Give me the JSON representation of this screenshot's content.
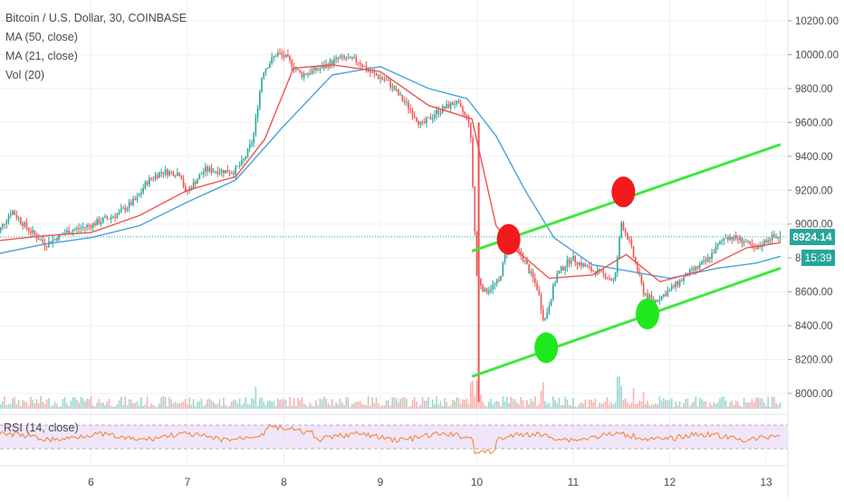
{
  "legend": {
    "title": "Bitcoin / U.S. Dollar, 30, COINBASE",
    "ma50": "MA (50, close)",
    "ma21": "MA (21, close)",
    "vol": "Vol (20)",
    "rsi": "RSI (14, close)"
  },
  "badges": {
    "last_price": "8924.14",
    "countdown": "15:39"
  },
  "colors": {
    "up": "#26a69a",
    "down": "#ef5350",
    "ma50": "#4aa3d8",
    "ma21": "#ef5350",
    "channel": "#3ee83e",
    "marker_red": "#f21a1a",
    "marker_green": "#1ee81e",
    "rsi_line": "#f57f2f",
    "rsi_band": "#eadcf6"
  },
  "chart_data": {
    "type": "candlestick",
    "x_ticks": [
      "6",
      "7",
      "8",
      "9",
      "10",
      "11",
      "12",
      "13"
    ],
    "y_ticks": [
      "8000.00",
      "8200.00",
      "8400.00",
      "8600.00",
      "8800.00",
      "9000.00",
      "9200.00",
      "9400.00",
      "9600.00",
      "9800.00",
      "10000.00",
      "10200.00"
    ],
    "ylim": [
      7900,
      10250
    ],
    "last_price": 8924.14,
    "price_path": [
      [
        5.0,
        8900
      ],
      [
        5.2,
        9080
      ],
      [
        5.35,
        8980
      ],
      [
        5.55,
        8880
      ],
      [
        5.75,
        8950
      ],
      [
        6.0,
        8990
      ],
      [
        6.3,
        9060
      ],
      [
        6.5,
        9150
      ],
      [
        6.6,
        9250
      ],
      [
        6.75,
        9310
      ],
      [
        6.95,
        9300
      ],
      [
        7.0,
        9180
      ],
      [
        7.2,
        9320
      ],
      [
        7.5,
        9310
      ],
      [
        7.6,
        9370
      ],
      [
        7.7,
        9500
      ],
      [
        7.8,
        9900
      ],
      [
        7.95,
        10010
      ],
      [
        8.05,
        9980
      ],
      [
        8.2,
        9880
      ],
      [
        8.4,
        9920
      ],
      [
        8.6,
        9980
      ],
      [
        8.8,
        9960
      ],
      [
        8.9,
        9900
      ],
      [
        9.1,
        9840
      ],
      [
        9.3,
        9700
      ],
      [
        9.45,
        9580
      ],
      [
        9.6,
        9660
      ],
      [
        9.8,
        9720
      ],
      [
        9.95,
        9600
      ],
      [
        10.02,
        8700
      ],
      [
        10.1,
        8600
      ],
      [
        10.25,
        8660
      ],
      [
        10.35,
        8900
      ],
      [
        10.5,
        8800
      ],
      [
        10.65,
        8620
      ],
      [
        10.72,
        8420
      ],
      [
        10.85,
        8700
      ],
      [
        11.0,
        8800
      ],
      [
        11.2,
        8730
      ],
      [
        11.35,
        8700
      ],
      [
        11.45,
        8660
      ],
      [
        11.52,
        9010
      ],
      [
        11.6,
        8900
      ],
      [
        11.75,
        8600
      ],
      [
        11.85,
        8540
      ],
      [
        12.0,
        8600
      ],
      [
        12.2,
        8700
      ],
      [
        12.4,
        8780
      ],
      [
        12.6,
        8930
      ],
      [
        12.8,
        8900
      ],
      [
        12.9,
        8840
      ],
      [
        13.05,
        8920
      ],
      [
        13.15,
        8924
      ]
    ],
    "ma21": [
      [
        5.0,
        8900
      ],
      [
        5.5,
        8930
      ],
      [
        6.0,
        8950
      ],
      [
        6.5,
        9050
      ],
      [
        7.0,
        9200
      ],
      [
        7.5,
        9280
      ],
      [
        7.8,
        9500
      ],
      [
        8.1,
        9920
      ],
      [
        8.5,
        9940
      ],
      [
        9.0,
        9900
      ],
      [
        9.5,
        9700
      ],
      [
        9.95,
        9620
      ],
      [
        10.2,
        8990
      ],
      [
        10.4,
        8850
      ],
      [
        10.75,
        8680
      ],
      [
        11.2,
        8700
      ],
      [
        11.55,
        8820
      ],
      [
        11.9,
        8660
      ],
      [
        12.3,
        8720
      ],
      [
        12.8,
        8860
      ],
      [
        13.15,
        8890
      ]
    ],
    "ma50": [
      [
        5.0,
        8820
      ],
      [
        5.5,
        8880
      ],
      [
        6.0,
        8920
      ],
      [
        6.5,
        8990
      ],
      [
        7.0,
        9130
      ],
      [
        7.5,
        9260
      ],
      [
        8.0,
        9580
      ],
      [
        8.5,
        9880
      ],
      [
        9.0,
        9930
      ],
      [
        9.5,
        9800
      ],
      [
        9.9,
        9740
      ],
      [
        10.2,
        9520
      ],
      [
        10.5,
        9200
      ],
      [
        10.8,
        8920
      ],
      [
        11.2,
        8760
      ],
      [
        11.6,
        8720
      ],
      [
        12.0,
        8680
      ],
      [
        12.5,
        8740
      ],
      [
        12.9,
        8770
      ],
      [
        13.15,
        8810
      ]
    ],
    "channel_upper": [
      [
        9.95,
        8840
      ],
      [
        13.15,
        9470
      ]
    ],
    "channel_lower": [
      [
        9.95,
        8100
      ],
      [
        13.15,
        8740
      ]
    ],
    "markers": [
      {
        "color": "red",
        "x": 10.33,
        "y": 8910
      },
      {
        "color": "red",
        "x": 11.52,
        "y": 9190
      },
      {
        "color": "green",
        "x": 10.72,
        "y": 8270
      },
      {
        "color": "green",
        "x": 11.77,
        "y": 8470
      }
    ]
  }
}
